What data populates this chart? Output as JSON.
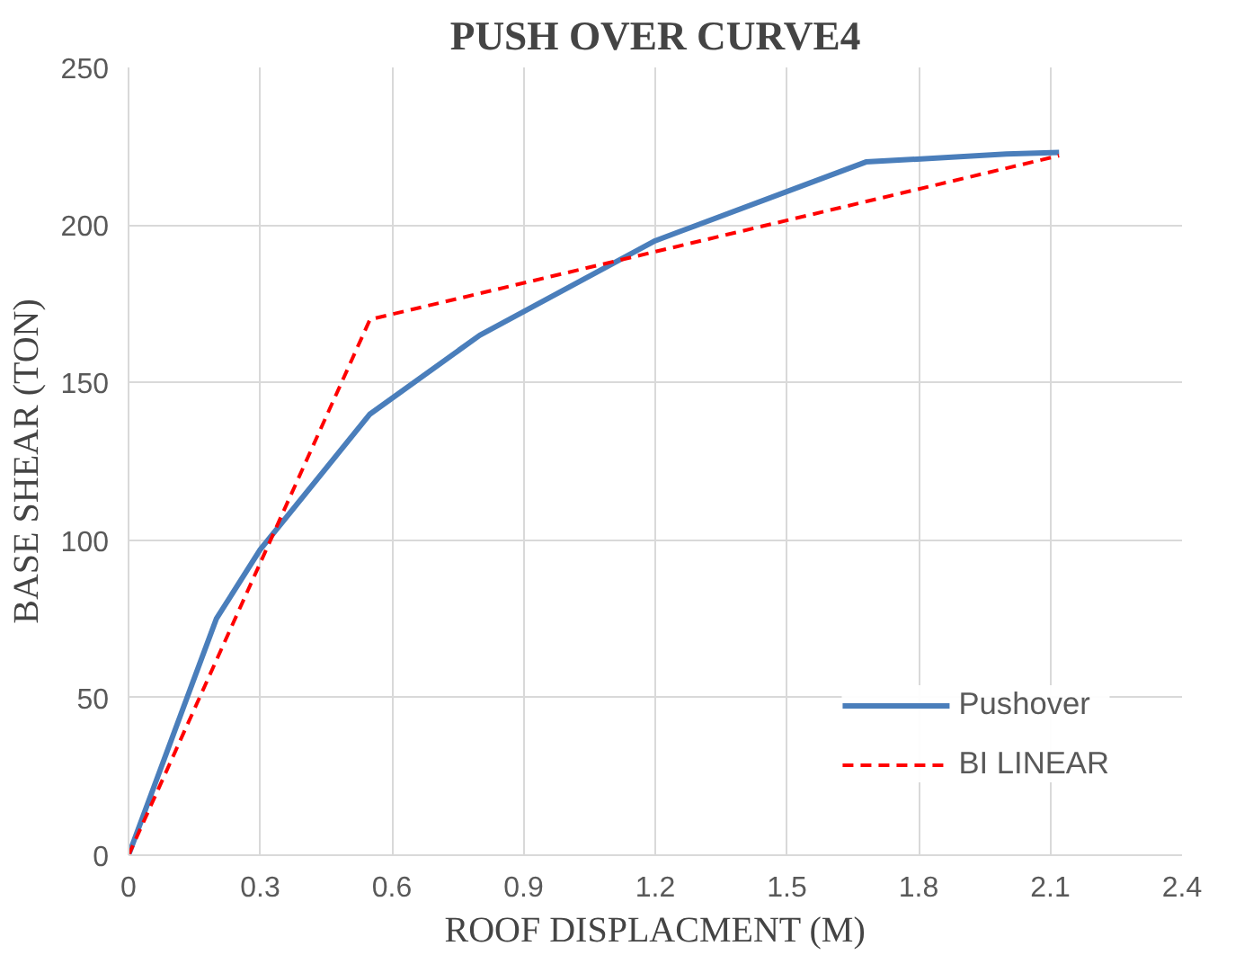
{
  "chart_data": {
    "type": "line",
    "title": "PUSH OVER CURVE4",
    "xlabel": "ROOF DISPLACMENT (M)",
    "ylabel": "BASE SHEAR (TON)",
    "xlim": [
      0,
      2.4
    ],
    "xticks": [
      0,
      0.3,
      0.6,
      0.9,
      1.2,
      1.5,
      1.8,
      2.1,
      2.4
    ],
    "ylim": [
      0,
      250
    ],
    "yticks": [
      0,
      50,
      100,
      150,
      200,
      250
    ],
    "grid": true,
    "legend": "bottom right",
    "series": [
      {
        "name": "Pushover",
        "color": "#4a7ebb",
        "line_style": "solid",
        "x": [
          0,
          0.2,
          0.3,
          0.55,
          0.8,
          1.2,
          1.68,
          2.0,
          2.12
        ],
        "values": [
          0,
          75,
          97,
          140,
          165,
          195,
          220,
          222.5,
          223
        ]
      },
      {
        "name": "BI LINEAR",
        "color": "#ff0000",
        "line_style": "dashed",
        "x": [
          0,
          0.55,
          2.12
        ],
        "values": [
          0,
          170,
          222
        ]
      }
    ]
  }
}
